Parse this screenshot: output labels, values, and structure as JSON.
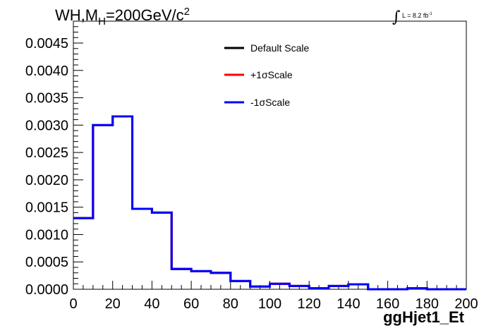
{
  "title": {
    "prefix": "WH,M",
    "subscript": "H",
    "mass_text": "=200GeV/c",
    "superscript": "2"
  },
  "luminosity": {
    "integral_symbol": "∫",
    "text": "L = 8.2 fb",
    "superscript": "-1"
  },
  "chart_data": {
    "type": "line",
    "xlabel": "ggHjet1_Et",
    "ylabel": "",
    "xlim": [
      0,
      200
    ],
    "ylim": [
      0,
      0.0049
    ],
    "x_ticks": [
      0,
      20,
      40,
      60,
      80,
      100,
      120,
      140,
      160,
      180,
      200
    ],
    "y_ticks": [
      "0.0000",
      "0.0005",
      "0.0010",
      "0.0015",
      "0.0020",
      "0.0025",
      "0.0030",
      "0.0035",
      "0.0040",
      "0.0045"
    ],
    "y_tick_values": [
      0,
      0.0005,
      0.001,
      0.0015,
      0.002,
      0.0025,
      0.003,
      0.0035,
      0.004,
      0.0045
    ],
    "bin_edges": [
      0,
      10,
      20,
      30,
      40,
      50,
      60,
      70,
      80,
      90,
      100,
      110,
      120,
      130,
      140,
      150,
      160,
      170,
      180,
      190,
      200
    ],
    "histogram_style": "step",
    "grid": false,
    "legend_position": "top-right",
    "series": [
      {
        "name": "Default Scale",
        "color": "#000000",
        "values": [
          0.0013,
          0.003,
          0.00316,
          0.00147,
          0.0014,
          0.00037,
          0.00033,
          0.0003,
          0.00015,
          5e-05,
          0.0001,
          6e-05,
          2e-05,
          6e-05,
          9e-05,
          0.0,
          0.0,
          2e-05,
          0.0,
          0.0
        ]
      },
      {
        "name": "+1σScale",
        "color": "#ff0000",
        "values": [
          0.0013,
          0.003,
          0.00316,
          0.00147,
          0.0014,
          0.00037,
          0.00033,
          0.0003,
          0.00015,
          5e-05,
          0.0001,
          6e-05,
          2e-05,
          6e-05,
          9e-05,
          0.0,
          0.0,
          2e-05,
          0.0,
          0.0
        ]
      },
      {
        "name": "-1σScale",
        "color": "#0000ff",
        "values": [
          0.0013,
          0.003,
          0.00316,
          0.00147,
          0.0014,
          0.00037,
          0.00033,
          0.0003,
          0.00015,
          5e-05,
          0.0001,
          6e-05,
          2e-05,
          6e-05,
          9e-05,
          0.0,
          0.0,
          2e-05,
          0.0,
          0.0
        ]
      }
    ]
  }
}
